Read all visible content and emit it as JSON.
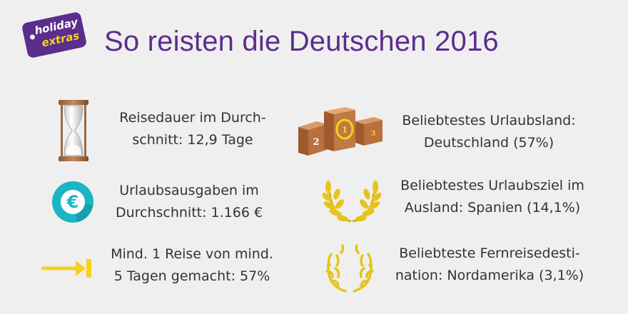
{
  "logo": {
    "line1": "holiday",
    "line2": "extras"
  },
  "title": "So reisten die Deutschen 2016",
  "left_items": [
    {
      "icon": "hourglass-icon",
      "lines": [
        "Reisedauer im Durch-",
        "schnitt: 12,9 Tage"
      ]
    },
    {
      "icon": "euro-icon",
      "lines": [
        "Urlaubsausgaben im",
        "Durchschnitt: 1.166 €"
      ]
    },
    {
      "icon": "arrow-right-icon",
      "lines": [
        "Mind. 1 Reise von mind.",
        "5 Tagen gemacht: 57%"
      ]
    }
  ],
  "right_items": [
    {
      "icon": "podium-icon",
      "lines": [
        "Beliebtestes Urlaubsland:",
        "Deutschland (57%)"
      ]
    },
    {
      "icon": "gold-laurel-icon",
      "lines": [
        "Beliebtestes Urlaubsziel im",
        "Ausland: Spanien (14,1%)"
      ]
    },
    {
      "icon": "laurel-wreath-icon",
      "lines": [
        "Beliebteste Fernreisedesti-",
        "nation: Nordamerika (3,1%)"
      ]
    }
  ],
  "podium": {
    "labels": [
      "2",
      "1",
      "3"
    ]
  },
  "colors": {
    "brand_purple": "#5b2d8c",
    "brand_yellow": "#f6d21a",
    "gold": "#e8c31a",
    "teal": "#1bb5c6",
    "bronze": "#b9703e"
  }
}
